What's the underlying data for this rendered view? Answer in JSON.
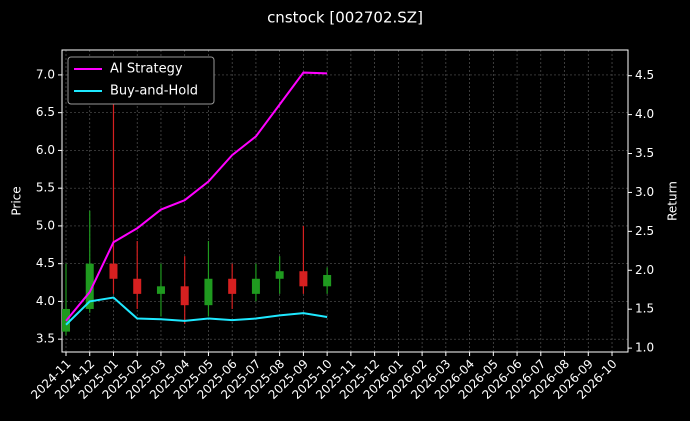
{
  "chart_data": {
    "type": "candlestick",
    "title": "cnstock [002702.SZ]",
    "ylabel": "Price",
    "y2label": "Return",
    "x": [
      "2024-11",
      "2024-12",
      "2025-01",
      "2025-02",
      "2025-03",
      "2025-04",
      "2025-05",
      "2025-06",
      "2025-07",
      "2025-08",
      "2025-09",
      "2025-10",
      "2025-11",
      "2025-12",
      "2026-01",
      "2026-02",
      "2026-03",
      "2026-04",
      "2026-05",
      "2026-06",
      "2026-07",
      "2026-08",
      "2026-09",
      "2026-10"
    ],
    "open": [
      3.6,
      3.9,
      4.5,
      4.3,
      4.1,
      4.2,
      3.95,
      4.3,
      4.1,
      4.3,
      4.4,
      4.2,
      null,
      null,
      null,
      null,
      null,
      null,
      null,
      null,
      null,
      null,
      null,
      null
    ],
    "high": [
      4.5,
      5.2,
      6.9,
      4.8,
      4.5,
      4.6,
      4.8,
      4.5,
      4.5,
      4.6,
      5.0,
      4.45,
      null,
      null,
      null,
      null,
      null,
      null,
      null,
      null,
      null,
      null,
      null,
      null
    ],
    "low": [
      3.55,
      3.85,
      4.1,
      3.9,
      3.8,
      3.7,
      3.8,
      3.9,
      4.0,
      4.1,
      4.1,
      4.1,
      null,
      null,
      null,
      null,
      null,
      null,
      null,
      null,
      null,
      null,
      null,
      null
    ],
    "close": [
      3.9,
      4.5,
      4.3,
      4.1,
      4.2,
      3.95,
      4.3,
      4.1,
      4.3,
      4.4,
      4.2,
      4.35,
      null,
      null,
      null,
      null,
      null,
      null,
      null,
      null,
      null,
      null,
      null,
      null
    ],
    "up_color": "#1f9a1f",
    "down_color": "#d62020",
    "series": [
      {
        "name": "AI Strategy",
        "color": "#ff00ff",
        "axis": "y2",
        "values": [
          1.35,
          1.72,
          2.36,
          2.54,
          2.78,
          2.9,
          3.14,
          3.48,
          3.72,
          4.13,
          4.54,
          4.53,
          null,
          null,
          null,
          null,
          null,
          null,
          null,
          null,
          null,
          null,
          null,
          null
        ]
      },
      {
        "name": "Buy-and-Hold",
        "color": "#1ee8ff",
        "axis": "y2",
        "values": [
          1.3,
          1.6,
          1.65,
          1.38,
          1.37,
          1.35,
          1.38,
          1.36,
          1.38,
          1.42,
          1.45,
          1.4,
          null,
          null,
          null,
          null,
          null,
          null,
          null,
          null,
          null,
          null,
          null,
          null
        ]
      }
    ],
    "ylim": [
      3.33,
      7.33
    ],
    "yticks": [
      3.5,
      {
        "value": 4,
        "label": "4.0"
      },
      4.5,
      {
        "value": 5,
        "label": "5.0"
      },
      5.5,
      {
        "value": 6,
        "label": "6.0"
      },
      6.5,
      {
        "value": 7,
        "label": "7.0"
      }
    ],
    "y2lim": [
      0.95,
      4.83
    ],
    "y2ticks": [
      {
        "value": 1,
        "label": "1.0"
      },
      1.5,
      {
        "value": 2,
        "label": "2.0"
      },
      2.5,
      {
        "value": 3,
        "label": "3.0"
      },
      3.5,
      {
        "value": 4,
        "label": "4.0"
      },
      4.5
    ],
    "grid": true,
    "legend": "upper left"
  }
}
